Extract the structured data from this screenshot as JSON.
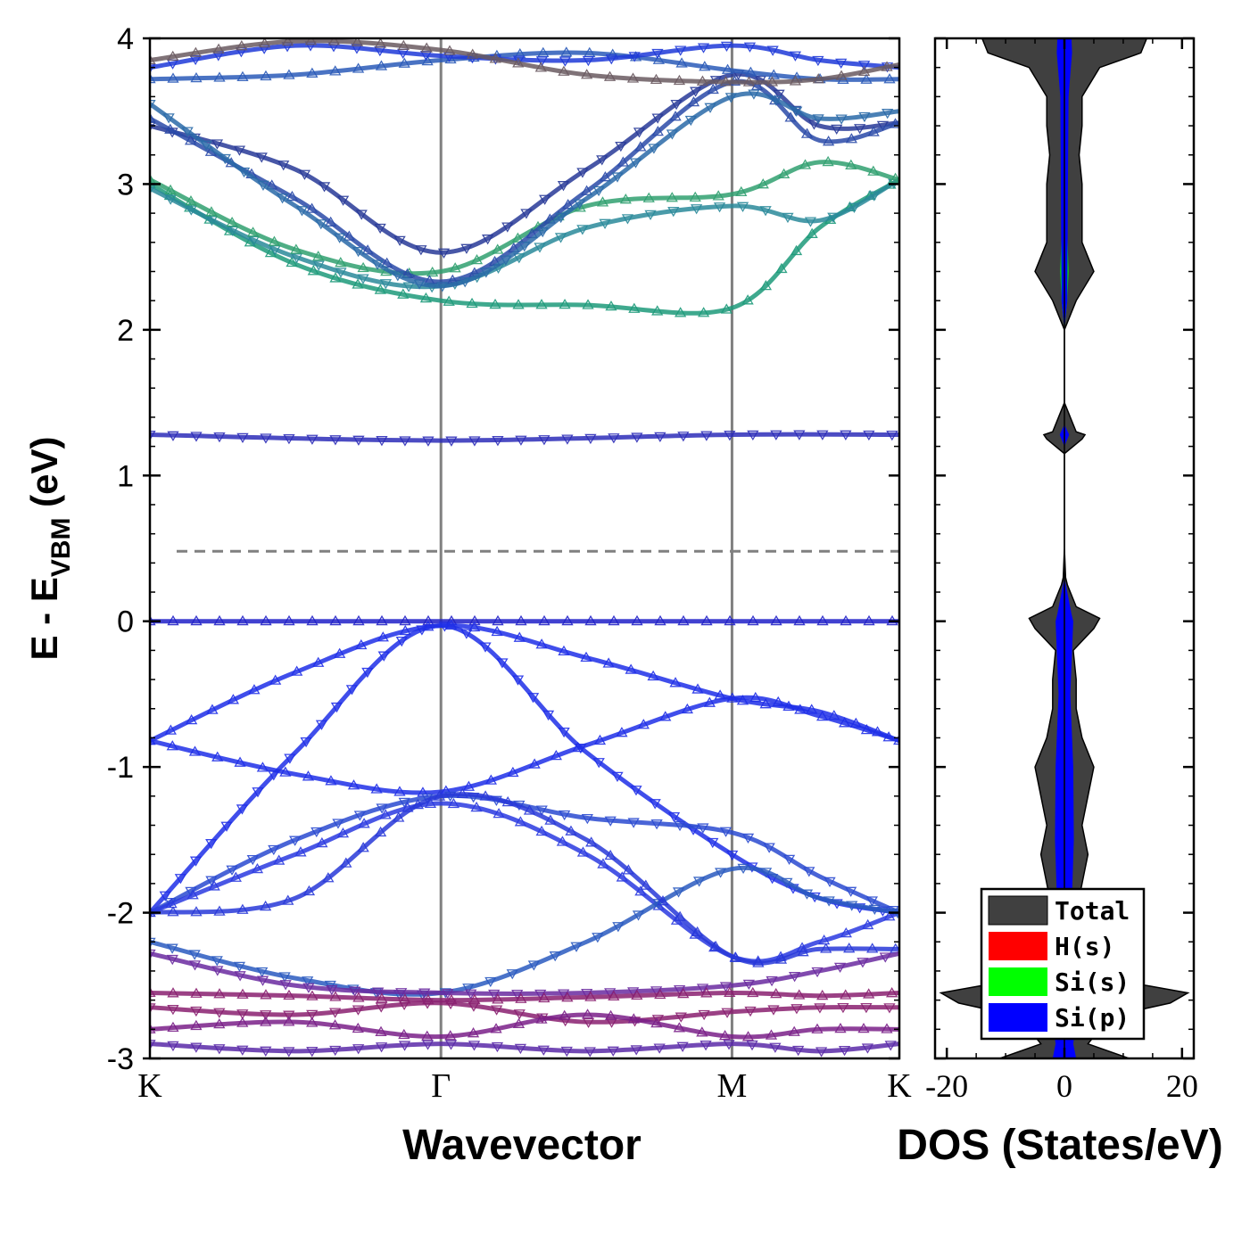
{
  "chart_data": [
    {
      "type": "line",
      "panel": "band-structure",
      "ylabel": {
        "prefix": "E - E",
        "subscript": "VBM",
        "suffix": " (eV)"
      },
      "xlabel": "Wavevector",
      "ylim": [
        -3,
        4
      ],
      "yticks": [
        "-3",
        "-2",
        "-1",
        "0",
        "1",
        "2",
        "3",
        "4"
      ],
      "kpoints": [
        {
          "label": "K",
          "pos": 0
        },
        {
          "label": "Γ",
          "pos": 2
        },
        {
          "label": "M",
          "pos": 4
        },
        {
          "label": "K",
          "pos": 5.15
        }
      ],
      "x_range": [
        0,
        5.15
      ],
      "reference_lines": [
        {
          "name": "fermi-level",
          "y": 0.48,
          "style": "dashed",
          "color": "#808080"
        }
      ],
      "series": [
        {
          "name": "",
          "color": "#2020c8",
          "x": [
            0,
            2,
            4,
            5.15
          ],
          "y": [
            0.0,
            0.0,
            0.0,
            0.0
          ]
        },
        {
          "name": "",
          "color": "#2d2db8",
          "x": [
            0,
            2,
            4,
            5.15
          ],
          "y": [
            1.28,
            1.24,
            1.28,
            1.28
          ]
        },
        {
          "name": "",
          "color": "#1f2fe8",
          "x": [
            0,
            1,
            2,
            3,
            4,
            4.6,
            5.15
          ],
          "y": [
            -0.82,
            -0.35,
            -0.03,
            -0.25,
            -0.53,
            -0.62,
            -0.82
          ]
        },
        {
          "name": "",
          "color": "#1f2fe8",
          "x": [
            0,
            1,
            2,
            3,
            4,
            4.6,
            5.15
          ],
          "y": [
            -2.0,
            -0.9,
            -0.03,
            -0.9,
            -1.6,
            -1.9,
            -2.0
          ]
        },
        {
          "name": "",
          "color": "#1f2fe8",
          "x": [
            0,
            1,
            2,
            3,
            4,
            4.6,
            5.15
          ],
          "y": [
            -0.82,
            -1.05,
            -1.17,
            -0.85,
            -0.53,
            -0.65,
            -0.82
          ]
        },
        {
          "name": "",
          "color": "#2a4ad0",
          "x": [
            0,
            1,
            2,
            3,
            4,
            4.6,
            5.15
          ],
          "y": [
            -2.0,
            -1.5,
            -1.2,
            -1.35,
            -1.45,
            -1.75,
            -2.0
          ]
        },
        {
          "name": "",
          "color": "#2a3ae0",
          "x": [
            0,
            1,
            2,
            3,
            4,
            4.6,
            5.15
          ],
          "y": [
            -2.0,
            -1.6,
            -1.25,
            -1.6,
            -2.3,
            -2.2,
            -2.0
          ]
        },
        {
          "name": "",
          "color": "#2a5ac0",
          "x": [
            0,
            1,
            2,
            3,
            4,
            4.6,
            5.15
          ],
          "y": [
            -2.2,
            -2.45,
            -2.55,
            -2.2,
            -1.7,
            -1.9,
            -2.0
          ]
        },
        {
          "name": "",
          "color": "#2838d8",
          "x": [
            0,
            1,
            2,
            3,
            4,
            4.6,
            5.15
          ],
          "y": [
            -2.0,
            -1.9,
            -1.2,
            -1.5,
            -2.3,
            -2.25,
            -2.25
          ]
        },
        {
          "name": "",
          "color": "#6a2aa0",
          "x": [
            0,
            1,
            2,
            3,
            4,
            4.6,
            5.15
          ],
          "y": [
            -2.28,
            -2.5,
            -2.55,
            -2.55,
            -2.5,
            -2.4,
            -2.28
          ]
        },
        {
          "name": "",
          "color": "#8a2070",
          "x": [
            0,
            1,
            2,
            3,
            4,
            4.6,
            5.15
          ],
          "y": [
            -2.55,
            -2.57,
            -2.6,
            -2.58,
            -2.55,
            -2.57,
            -2.55
          ]
        },
        {
          "name": "",
          "color": "#8a2070",
          "x": [
            0,
            1,
            2,
            3,
            4,
            4.6,
            5.15
          ],
          "y": [
            -2.65,
            -2.7,
            -2.62,
            -2.75,
            -2.68,
            -2.65,
            -2.65
          ]
        },
        {
          "name": "",
          "color": "#7a2088",
          "x": [
            0,
            1,
            2,
            3,
            4,
            4.6,
            5.15
          ],
          "y": [
            -2.8,
            -2.75,
            -2.85,
            -2.7,
            -2.85,
            -2.8,
            -2.8
          ]
        },
        {
          "name": "",
          "color": "#5a2aa8",
          "x": [
            0,
            1,
            2,
            3,
            4,
            4.6,
            5.15
          ],
          "y": [
            -2.9,
            -2.95,
            -2.9,
            -2.95,
            -2.9,
            -2.95,
            -2.9
          ]
        },
        {
          "name": "",
          "color": "#1d9a7a",
          "x": [
            0,
            1,
            2,
            3,
            4,
            4.6,
            5.15
          ],
          "y": [
            3.0,
            2.45,
            2.2,
            2.17,
            2.15,
            2.7,
            3.03
          ]
        },
        {
          "name": "",
          "color": "#2a8a9a",
          "x": [
            0,
            1,
            2,
            3,
            4,
            4.6,
            5.15
          ],
          "y": [
            2.97,
            2.5,
            2.3,
            2.7,
            2.85,
            2.75,
            3.03
          ]
        },
        {
          "name": "",
          "color": "#30a070",
          "x": [
            0,
            1,
            2,
            3,
            4,
            4.6,
            5.15
          ],
          "y": [
            3.03,
            2.55,
            2.4,
            2.85,
            2.93,
            3.15,
            3.03
          ]
        },
        {
          "name": "",
          "color": "#283a98",
          "x": [
            0,
            1,
            2,
            3,
            4,
            4.6,
            5.15
          ],
          "y": [
            3.4,
            3.1,
            2.53,
            3.1,
            3.75,
            3.4,
            3.42
          ]
        },
        {
          "name": "",
          "color": "#2a4aa8",
          "x": [
            0,
            1,
            2,
            3,
            4,
            4.6,
            5.15
          ],
          "y": [
            3.45,
            2.9,
            2.33,
            2.95,
            3.7,
            3.3,
            3.42
          ]
        },
        {
          "name": "",
          "color": "#2a6aa8",
          "x": [
            0,
            1,
            2,
            3,
            4,
            4.6,
            5.15
          ],
          "y": [
            3.55,
            2.85,
            2.3,
            2.9,
            3.6,
            3.45,
            3.5
          ]
        },
        {
          "name": "",
          "color": "#2a5ab8",
          "x": [
            0,
            1,
            2,
            3,
            4,
            4.6,
            5.15
          ],
          "y": [
            3.72,
            3.75,
            3.85,
            3.9,
            3.78,
            3.72,
            3.72
          ]
        },
        {
          "name": "",
          "color": "#1f3ad8",
          "x": [
            0,
            1,
            2,
            3,
            4,
            4.6,
            5.15
          ],
          "y": [
            3.8,
            3.95,
            3.88,
            3.85,
            3.95,
            3.85,
            3.8
          ]
        },
        {
          "name": "",
          "color": "#6a5a60",
          "x": [
            0,
            1,
            2,
            3,
            4,
            4.6,
            5.15
          ],
          "y": [
            3.85,
            3.98,
            3.92,
            3.75,
            3.7,
            3.72,
            3.82
          ]
        }
      ]
    },
    {
      "type": "area",
      "panel": "dos",
      "xlabel": "DOS (States/eV)",
      "xlim": [
        -22,
        22
      ],
      "xticks": [
        "-20",
        "0",
        "20"
      ],
      "ylim": [
        -3,
        4
      ],
      "orientation": "horizontal-mirrored",
      "legend": {
        "position": "bottom-right",
        "entries": [
          "Total",
          "H(s)",
          "Si(s)",
          "Si(p)"
        ]
      },
      "colors": {
        "Total": "#404040",
        "H(s)": "#ff0000",
        "Si(s)": "#00ff00",
        "Si(p)": "#0000ff"
      },
      "series": [
        {
          "name": "Total",
          "energy": [
            -3.0,
            -2.9,
            -2.8,
            -2.7,
            -2.62,
            -2.55,
            -2.5,
            -2.45,
            -2.3,
            -2.0,
            -1.8,
            -1.6,
            -1.4,
            -1.2,
            -1.0,
            -0.8,
            -0.6,
            -0.4,
            -0.2,
            -0.05,
            0.02,
            0.1,
            0.2,
            0.25,
            0.3,
            0.5,
            1.0,
            1.15,
            1.25,
            1.28,
            1.3,
            1.4,
            1.5,
            1.8,
            2.0,
            2.05,
            2.2,
            2.4,
            2.6,
            2.8,
            3.0,
            3.2,
            3.4,
            3.6,
            3.8,
            3.9,
            4.0
          ],
          "dos": [
            11,
            4,
            6,
            9,
            18,
            21,
            14,
            5,
            3,
            2,
            3,
            4,
            3,
            4,
            5,
            3,
            2,
            2,
            1.5,
            5,
            6,
            2,
            1,
            0.5,
            0.2,
            0,
            0,
            0,
            3,
            3.5,
            2,
            1,
            0,
            0,
            0,
            0.5,
            2,
            5,
            3,
            3,
            3,
            2.5,
            3,
            3,
            6,
            13,
            14
          ]
        },
        {
          "name": "H(s)",
          "energy": [
            -3.0,
            -2.6,
            -2.0,
            -1.0,
            0.0,
            0.2,
            0.3,
            2.0,
            2.2,
            3.0,
            4.0
          ],
          "dos": [
            0.5,
            0.8,
            0.3,
            0.3,
            0.4,
            0.2,
            0,
            0,
            0.3,
            0.3,
            0.5
          ]
        },
        {
          "name": "Si(s)",
          "energy": [
            -3.0,
            -2.6,
            -2.0,
            -1.0,
            0.0,
            0.3,
            2.0,
            2.2,
            2.4,
            2.8,
            3.4,
            4.0
          ],
          "dos": [
            0.3,
            0.5,
            0.6,
            0.3,
            0.1,
            0,
            0,
            0.5,
            0.7,
            0.4,
            0.3,
            0.3
          ]
        },
        {
          "name": "Si(p)",
          "energy": [
            -3.0,
            -2.9,
            -2.6,
            -2.0,
            -1.5,
            -1.0,
            -0.5,
            0.0,
            0.05,
            0.3,
            1.2,
            1.28,
            1.35,
            2.0,
            2.2,
            3.0,
            3.6,
            3.9,
            4.0
          ],
          "dos": [
            2,
            1.5,
            2.5,
            1.2,
            1.6,
            1.5,
            1,
            1.5,
            1.2,
            0,
            0,
            0.8,
            0,
            0,
            0.5,
            0.6,
            0.7,
            1.3,
            1.2
          ]
        }
      ]
    }
  ]
}
